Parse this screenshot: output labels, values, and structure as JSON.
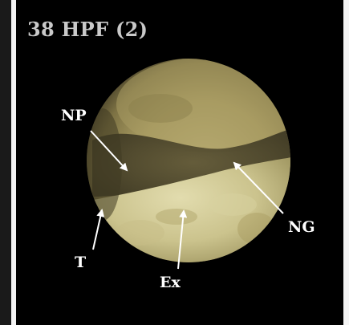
{
  "panel": {
    "title": "38 HPF (2)"
  },
  "labels": {
    "np": "NP",
    "ng": "NG",
    "t": "T",
    "ex": "Ex"
  },
  "colors": {
    "background": "#000000",
    "title": "#c9c9c9",
    "label": "#ffffff",
    "embryo_light": "#d8cf9a",
    "embryo_dark": "#5b5231"
  }
}
